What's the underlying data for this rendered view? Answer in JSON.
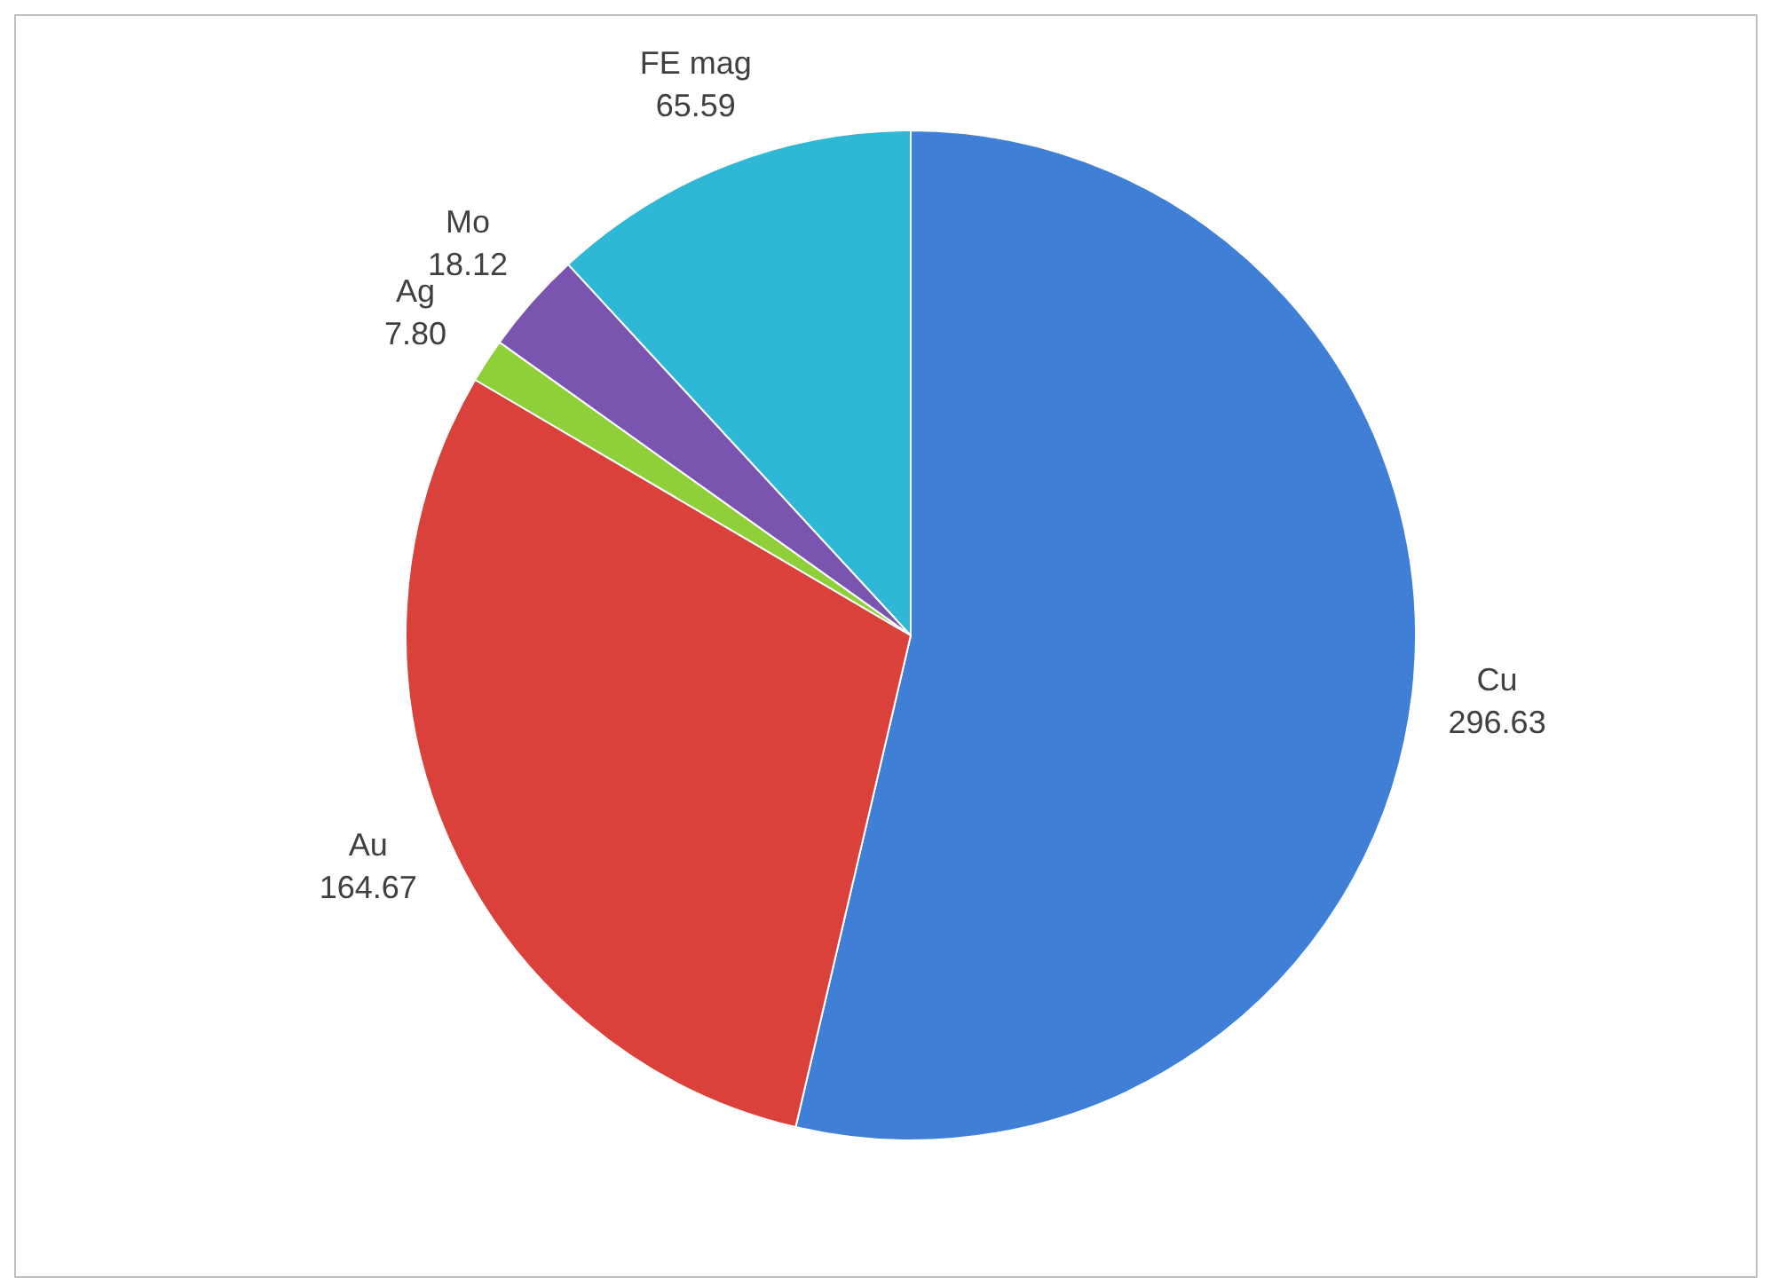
{
  "chart_data": {
    "type": "pie",
    "categories": [
      "Cu",
      "Au",
      "Ag",
      "Mo",
      "FE mag"
    ],
    "values": [
      296.63,
      164.67,
      7.8,
      18.12,
      65.59
    ],
    "colors": [
      "#3f7fd6",
      "#d9413a",
      "#8fcf3a",
      "#7a55b0",
      "#2fb8d6"
    ],
    "value_labels": [
      "296.63",
      "164.67",
      "7.80",
      "18.12",
      "65.59"
    ],
    "legend": false
  }
}
